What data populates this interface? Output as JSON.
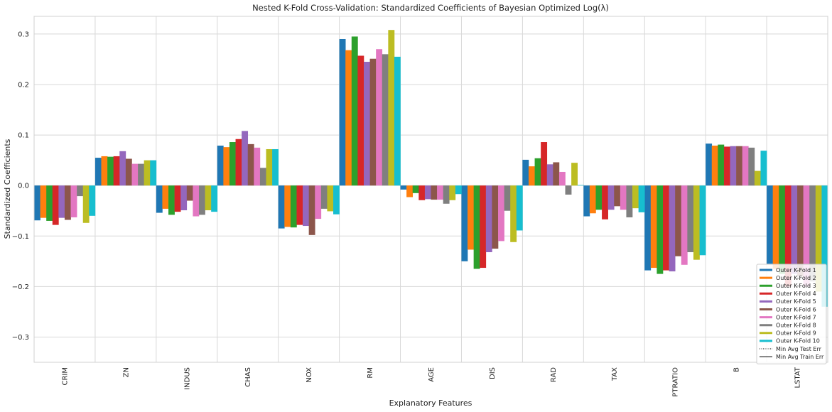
{
  "chart_data": {
    "type": "bar",
    "title": "Nested K-Fold Cross-Validation: Standardized Coefficients of Bayesian Optimized Log(λ)",
    "xlabel": "Explanatory Features",
    "ylabel": "Standardized Coefficients",
    "ylim": [
      -0.35,
      0.335
    ],
    "yticks": [
      "0.3",
      "0.2",
      "0.1",
      "0.0",
      "−0.1",
      "−0.2",
      "−0.3"
    ],
    "grid": true,
    "legend_position": "lower-right",
    "categories": [
      "CRIM",
      "ZN",
      "INDUS",
      "CHAS",
      "NOX",
      "RM",
      "AGE",
      "DIS",
      "RAD",
      "TAX",
      "PTRATIO",
      "B",
      "LSTAT"
    ],
    "series": [
      {
        "name": "Outer K-Fold 1",
        "color": "#1f77b4",
        "values": [
          -0.069,
          0.055,
          -0.054,
          0.079,
          -0.085,
          0.29,
          -0.008,
          -0.15,
          0.051,
          -0.061,
          -0.168,
          0.083,
          -0.155
        ]
      },
      {
        "name": "Outer K-Fold 2",
        "color": "#ff7f0e",
        "values": [
          -0.064,
          0.058,
          -0.046,
          0.076,
          -0.082,
          0.268,
          -0.023,
          -0.127,
          0.038,
          -0.055,
          -0.163,
          0.079,
          -0.165
        ]
      },
      {
        "name": "Outer K-Fold 3",
        "color": "#2ca02c",
        "values": [
          -0.07,
          0.057,
          -0.058,
          0.086,
          -0.083,
          0.295,
          -0.015,
          -0.165,
          0.054,
          -0.048,
          -0.175,
          0.081,
          -0.175
        ]
      },
      {
        "name": "Outer K-Fold 4",
        "color": "#d62728",
        "values": [
          -0.078,
          0.058,
          -0.052,
          0.092,
          -0.078,
          0.257,
          -0.029,
          -0.163,
          0.086,
          -0.067,
          -0.168,
          0.077,
          -0.2
        ]
      },
      {
        "name": "Outer K-Fold 5",
        "color": "#9467bd",
        "values": [
          -0.064,
          0.068,
          -0.049,
          0.108,
          -0.08,
          0.245,
          -0.027,
          -0.132,
          0.042,
          -0.048,
          -0.17,
          0.078,
          -0.175
        ]
      },
      {
        "name": "Outer K-Fold 6",
        "color": "#8c564b",
        "values": [
          -0.068,
          0.053,
          -0.03,
          0.082,
          -0.098,
          0.251,
          -0.028,
          -0.125,
          0.046,
          -0.041,
          -0.14,
          0.078,
          -0.18
        ]
      },
      {
        "name": "Outer K-Fold 7",
        "color": "#e377c2",
        "values": [
          -0.063,
          0.043,
          -0.061,
          0.075,
          -0.066,
          0.27,
          -0.028,
          -0.11,
          0.027,
          -0.048,
          -0.157,
          0.078,
          -0.2
        ]
      },
      {
        "name": "Outer K-Fold 8",
        "color": "#7f7f7f",
        "values": [
          -0.021,
          0.043,
          -0.058,
          0.035,
          -0.046,
          0.26,
          -0.036,
          -0.05,
          -0.018,
          -0.063,
          -0.132,
          0.075,
          -0.19
        ]
      },
      {
        "name": "Outer K-Fold 9",
        "color": "#bcbd22",
        "values": [
          -0.074,
          0.05,
          -0.049,
          0.072,
          -0.051,
          0.308,
          -0.029,
          -0.112,
          0.045,
          -0.045,
          -0.147,
          0.029,
          -0.21
        ]
      },
      {
        "name": "Outer K-Fold 10",
        "color": "#17becf",
        "values": [
          -0.06,
          0.05,
          -0.052,
          0.072,
          -0.057,
          0.255,
          -0.017,
          -0.089,
          0.001,
          -0.053,
          -0.138,
          0.069,
          -0.24
        ]
      }
    ],
    "extra_legend": [
      {
        "name": "Min Avg Test Err",
        "style": "dotted",
        "color": "#000000"
      },
      {
        "name": "Min Avg Train Err",
        "style": "solid",
        "color": "#000000"
      }
    ]
  }
}
